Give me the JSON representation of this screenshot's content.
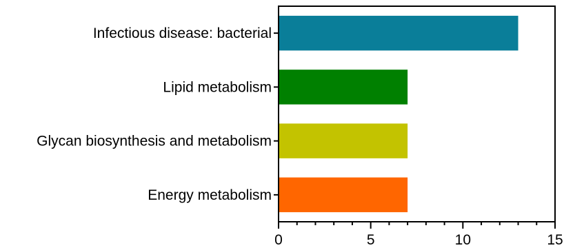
{
  "chart_data": {
    "type": "bar",
    "orientation": "horizontal",
    "categories": [
      "Infectious disease: bacterial",
      "Lipid metabolism",
      "Glycan biosynthesis and metabolism",
      "Energy metabolism"
    ],
    "values": [
      13,
      7,
      7,
      7
    ],
    "colors": [
      "#0a7e99",
      "#008000",
      "#c3c300",
      "#ff6600"
    ],
    "xlim": [
      0,
      15
    ],
    "xticks": [
      0,
      5,
      10,
      15
    ],
    "xtick_labels": [
      "0",
      "5",
      "10",
      "15"
    ],
    "minor_tick_step": 1,
    "title": "",
    "xlabel": "",
    "ylabel": "",
    "grid": false,
    "legend": "none"
  }
}
